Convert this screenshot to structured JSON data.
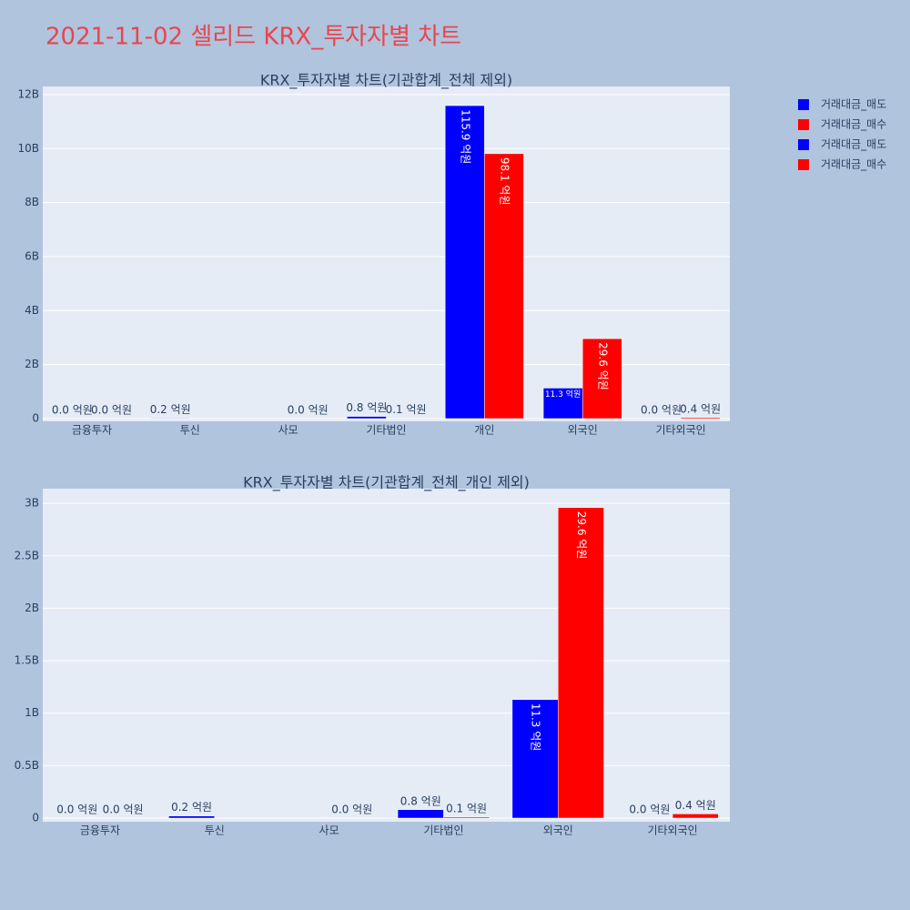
{
  "title": "2021-11-02 셀리드 KRX_투자자별 차트",
  "chart_data": [
    {
      "type": "bar",
      "title": "KRX_투자자별 차트(기관합계_전체 제외)",
      "categories": [
        "금융투자",
        "투신",
        "사모",
        "기타법인",
        "개인",
        "외국인",
        "기타외국인"
      ],
      "series": [
        {
          "name": "거래대금_매도",
          "color": "blue",
          "values": [
            0,
            20000000,
            null,
            80000000,
            11590000000,
            1130000000,
            0
          ],
          "value_labels": [
            "0.0 억원",
            "0.2 억원",
            null,
            "0.8 억원",
            "115.9 억원",
            "11.3 억원",
            "0.0 억원"
          ]
        },
        {
          "name": "거래대금_매수",
          "color": "red",
          "values": [
            0,
            null,
            0,
            10000000,
            9810000000,
            2960000000,
            40000000
          ],
          "value_labels": [
            "0.0 억원",
            null,
            "0.0 억원",
            "0.1 억원",
            "98.1 억원",
            "29.6 억원",
            "0.4 억원"
          ]
        }
      ],
      "ylim": [
        0,
        12300000000
      ],
      "yticks": [
        0,
        {
          "value": 2000000000,
          "label": "2B"
        },
        {
          "value": 4000000000,
          "label": "4B"
        },
        {
          "value": 6000000000,
          "label": "6B"
        },
        {
          "value": 8000000000,
          "label": "8B"
        },
        {
          "value": 10000000000,
          "label": "10B"
        },
        {
          "value": 12000000000,
          "label": "12B"
        }
      ],
      "grid": true
    },
    {
      "type": "bar",
      "title": "KRX_투자자별 차트(기관합계_전체_개인 제외)",
      "categories": [
        "금융투자",
        "투신",
        "사모",
        "기타법인",
        "외국인",
        "기타외국인"
      ],
      "series": [
        {
          "name": "거래대금_매도",
          "color": "blue",
          "values": [
            0,
            20000000,
            null,
            80000000,
            1130000000,
            0
          ],
          "value_labels": [
            "0.0 억원",
            "0.2 억원",
            null,
            "0.8 억원",
            "11.3 억원",
            "0.0 억원"
          ]
        },
        {
          "name": "거래대금_매수",
          "color": "red",
          "values": [
            0,
            null,
            0,
            10000000,
            2960000000,
            40000000
          ],
          "value_labels": [
            "0.0 억원",
            null,
            "0.0 억원",
            "0.1 억원",
            "29.6 억원",
            "0.4 억원"
          ]
        }
      ],
      "ylim": [
        0,
        3140000000
      ],
      "yticks": [
        0,
        {
          "value": 500000000,
          "label": "0.5B"
        },
        {
          "value": 1000000000,
          "label": "1B"
        },
        {
          "value": 1500000000,
          "label": "1.5B"
        },
        {
          "value": 2000000000,
          "label": "2B"
        },
        {
          "value": 2500000000,
          "label": "2.5B"
        },
        {
          "value": 3000000000,
          "label": "3B"
        }
      ],
      "grid": true
    }
  ]
}
